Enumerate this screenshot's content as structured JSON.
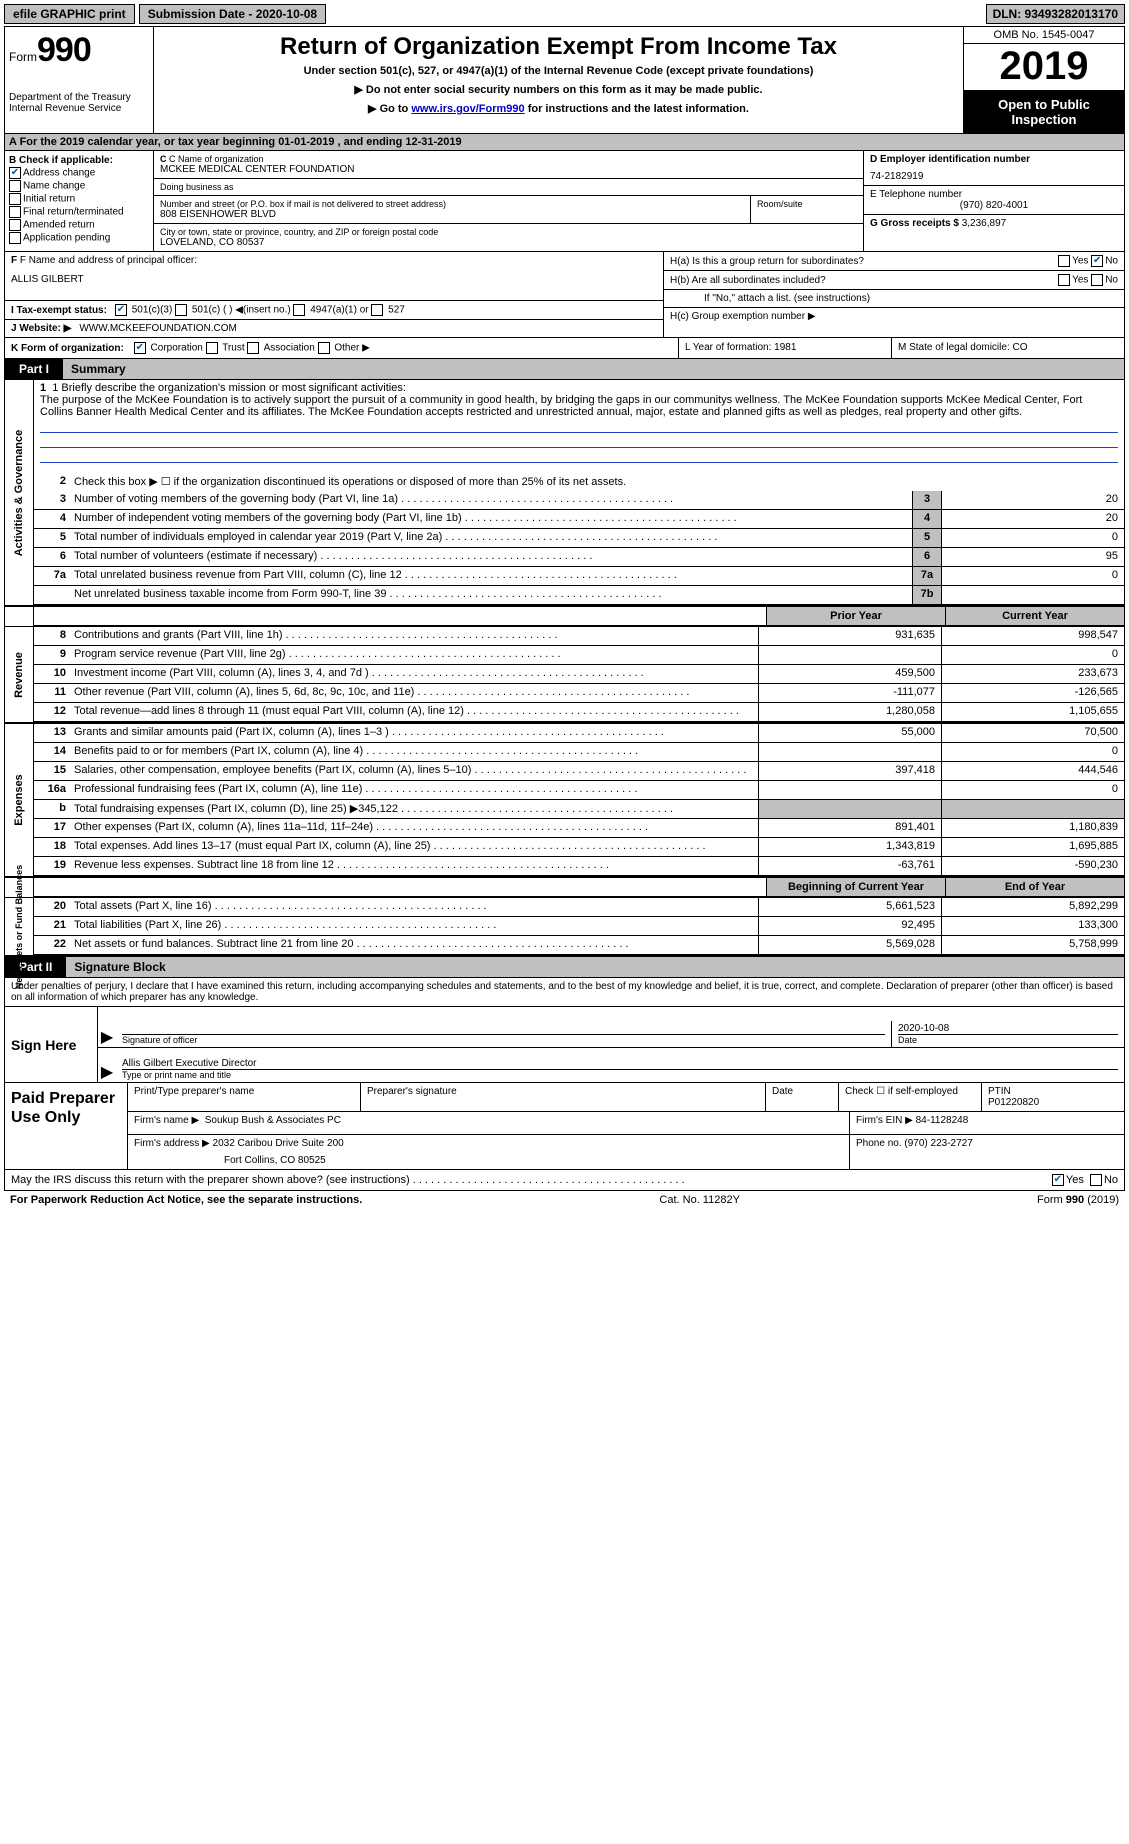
{
  "topbar": {
    "efile_label": "efile GRAPHIC print",
    "submission_label": "Submission Date - 2020-10-08",
    "dln_label": "DLN: 93493282013170"
  },
  "header": {
    "form_prefix": "Form",
    "form_number": "990",
    "dept": "Department of the Treasury\nInternal Revenue Service",
    "title": "Return of Organization Exempt From Income Tax",
    "subtitle": "Under section 501(c), 527, or 4947(a)(1) of the Internal Revenue Code (except private foundations)",
    "warn1": "▶ Do not enter social security numbers on this form as it may be made public.",
    "warn2_pre": "▶ Go to ",
    "warn2_link": "www.irs.gov/Form990",
    "warn2_post": " for instructions and the latest information.",
    "omb": "OMB No. 1545-0047",
    "year": "2019",
    "open": "Open to Public Inspection"
  },
  "row_a": "A For the 2019 calendar year, or tax year beginning 01-01-2019    , and ending 12-31-2019",
  "col_b": {
    "title": "B Check if applicable:",
    "items": [
      {
        "label": "Address change",
        "checked": true
      },
      {
        "label": "Name change",
        "checked": false
      },
      {
        "label": "Initial return",
        "checked": false
      },
      {
        "label": "Final return/terminated",
        "checked": false
      },
      {
        "label": "Amended return",
        "checked": false
      },
      {
        "label": "Application pending",
        "checked": false
      }
    ]
  },
  "block_c": {
    "name_lbl": "C Name of organization",
    "name": "MCKEE MEDICAL CENTER FOUNDATION",
    "dba_lbl": "Doing business as",
    "dba": "",
    "addr_lbl": "Number and street (or P.O. box if mail is not delivered to street address)",
    "addr": "808 Eisenhower BLVD",
    "room_lbl": "Room/suite",
    "city_lbl": "City or town, state or province, country, and ZIP or foreign postal code",
    "city": "LOVELAND, CO  80537"
  },
  "block_d": {
    "lbl": "D Employer identification number",
    "val": "74-2182919"
  },
  "block_e": {
    "lbl": "E Telephone number",
    "val": "(970) 820-4001"
  },
  "block_g": {
    "lbl": "G Gross receipts $",
    "val": "3,236,897"
  },
  "block_f": {
    "lbl": "F Name and address of principal officer:",
    "val": "ALLIS GILBERT"
  },
  "block_h": {
    "a": "H(a)  Is this a group return for subordinates?",
    "a_yes": false,
    "a_no": true,
    "b": "H(b)  Are all subordinates included?",
    "b_note": "If \"No,\" attach a list. (see instructions)",
    "c": "H(c)  Group exemption number ▶"
  },
  "block_i": {
    "lbl": "I   Tax-exempt status:",
    "opts": [
      "501(c)(3)",
      "501(c) (   ) ◀(insert no.)",
      "4947(a)(1) or",
      "527"
    ],
    "checked": 0
  },
  "block_j": {
    "lbl": "J   Website: ▶",
    "val": "WWW.MCKEEFOUNDATION.COM"
  },
  "block_k": {
    "lbl": "K Form of organization:",
    "opts": [
      "Corporation",
      "Trust",
      "Association",
      "Other ▶"
    ],
    "checked": 0
  },
  "block_l": "L Year of formation: 1981",
  "block_m": "M State of legal domicile: CO",
  "part1": {
    "tab": "Part I",
    "title": "Summary",
    "mission_lbl": "1  Briefly describe the organization's mission or most significant activities:",
    "mission": "The purpose of the McKee Foundation is to actively support the pursuit of a community in good health, by bridging the gaps in our communitys wellness. The McKee Foundation supports McKee Medical Center, Fort Collins Banner Health Medical Center and its affiliates. The McKee Foundation accepts restricted and unrestricted annual, major, estate and planned gifts as well as pledges, real property and other gifts.",
    "line2": "Check this box ▶ ☐  if the organization discontinued its operations or disposed of more than 25% of its net assets."
  },
  "groups": [
    {
      "vlabel": "Activities & Governance",
      "lines": [
        {
          "num": "3",
          "desc": "Number of voting members of the governing body (Part VI, line 1a)",
          "c": "3",
          "v": "20",
          "dots": true
        },
        {
          "num": "4",
          "desc": "Number of independent voting members of the governing body (Part VI, line 1b)",
          "c": "4",
          "v": "20",
          "dots": true
        },
        {
          "num": "5",
          "desc": "Total number of individuals employed in calendar year 2019 (Part V, line 2a)",
          "c": "5",
          "v": "0",
          "dots": true
        },
        {
          "num": "6",
          "desc": "Total number of volunteers (estimate if necessary)",
          "c": "6",
          "v": "95",
          "dots": true
        },
        {
          "num": "7a",
          "desc": "Total unrelated business revenue from Part VIII, column (C), line 12",
          "c": "7a",
          "v": "0",
          "dots": true
        },
        {
          "num": "",
          "desc": "Net unrelated business taxable income from Form 990-T, line 39",
          "c": "7b",
          "v": "",
          "dots": true
        }
      ]
    }
  ],
  "hdr_cols": {
    "py": "Prior Year",
    "cy": "Current Year"
  },
  "revenue": {
    "vlabel": "Revenue",
    "lines": [
      {
        "num": "8",
        "desc": "Contributions and grants (Part VIII, line 1h)",
        "py": "931,635",
        "cy": "998,547"
      },
      {
        "num": "9",
        "desc": "Program service revenue (Part VIII, line 2g)",
        "py": "",
        "cy": "0"
      },
      {
        "num": "10",
        "desc": "Investment income (Part VIII, column (A), lines 3, 4, and 7d )",
        "py": "459,500",
        "cy": "233,673"
      },
      {
        "num": "11",
        "desc": "Other revenue (Part VIII, column (A), lines 5, 6d, 8c, 9c, 10c, and 11e)",
        "py": "-111,077",
        "cy": "-126,565"
      },
      {
        "num": "12",
        "desc": "Total revenue—add lines 8 through 11 (must equal Part VIII, column (A), line 12)",
        "py": "1,280,058",
        "cy": "1,105,655"
      }
    ]
  },
  "expenses": {
    "vlabel": "Expenses",
    "lines": [
      {
        "num": "13",
        "desc": "Grants and similar amounts paid (Part IX, column (A), lines 1–3 )",
        "py": "55,000",
        "cy": "70,500"
      },
      {
        "num": "14",
        "desc": "Benefits paid to or for members (Part IX, column (A), line 4)",
        "py": "",
        "cy": "0"
      },
      {
        "num": "15",
        "desc": "Salaries, other compensation, employee benefits (Part IX, column (A), lines 5–10)",
        "py": "397,418",
        "cy": "444,546"
      },
      {
        "num": "16a",
        "desc": "Professional fundraising fees (Part IX, column (A), line 11e)",
        "py": "",
        "cy": "0"
      },
      {
        "num": "b",
        "desc": "Total fundraising expenses (Part IX, column (D), line 25) ▶345,122",
        "py": "grey",
        "cy": "grey"
      },
      {
        "num": "17",
        "desc": "Other expenses (Part IX, column (A), lines 11a–11d, 11f–24e)",
        "py": "891,401",
        "cy": "1,180,839"
      },
      {
        "num": "18",
        "desc": "Total expenses. Add lines 13–17 (must equal Part IX, column (A), line 25)",
        "py": "1,343,819",
        "cy": "1,695,885"
      },
      {
        "num": "19",
        "desc": "Revenue less expenses. Subtract line 18 from line 12",
        "py": "-63,761",
        "cy": "-590,230"
      }
    ]
  },
  "netassets": {
    "vlabel": "Net Assets or Fund Balances",
    "hdr": {
      "py": "Beginning of Current Year",
      "cy": "End of Year"
    },
    "lines": [
      {
        "num": "20",
        "desc": "Total assets (Part X, line 16)",
        "py": "5,661,523",
        "cy": "5,892,299"
      },
      {
        "num": "21",
        "desc": "Total liabilities (Part X, line 26)",
        "py": "92,495",
        "cy": "133,300"
      },
      {
        "num": "22",
        "desc": "Net assets or fund balances. Subtract line 21 from line 20",
        "py": "5,569,028",
        "cy": "5,758,999"
      }
    ]
  },
  "part2": {
    "tab": "Part II",
    "title": "Signature Block"
  },
  "sig": {
    "note": "Under penalties of perjury, I declare that I have examined this return, including accompanying schedules and statements, and to the best of my knowledge and belief, it is true, correct, and complete. Declaration of preparer (other than officer) is based on all information of which preparer has any knowledge.",
    "sign_here": "Sign Here",
    "sig_officer": "Signature of officer",
    "date": "Date",
    "date_val": "2020-10-08",
    "name_title": "Allis Gilbert  Executive Director",
    "name_title_lbl": "Type or print name and title"
  },
  "paid": {
    "title": "Paid Preparer Use Only",
    "r1": {
      "a": "Print/Type preparer's name",
      "b": "Preparer's signature",
      "c": "Date",
      "d": "Check ☐ if self-employed",
      "e": "PTIN",
      "e_val": "P01220820"
    },
    "r2": {
      "a": "Firm's name    ▶",
      "a_val": "Soukup Bush & Associates PC",
      "b": "Firm's EIN ▶",
      "b_val": "84-1128248"
    },
    "r3": {
      "a": "Firm's address ▶",
      "a_val": "2032 Caribou Drive Suite 200",
      "a_val2": "Fort Collins, CO  80525",
      "b": "Phone no.",
      "b_val": "(970) 223-2727"
    }
  },
  "may_discuss": "May the IRS discuss this return with the preparer shown above? (see instructions)",
  "may_yes": true,
  "footer": {
    "left": "For Paperwork Reduction Act Notice, see the separate instructions.",
    "mid": "Cat. No. 11282Y",
    "right": "Form 990 (2019)"
  }
}
